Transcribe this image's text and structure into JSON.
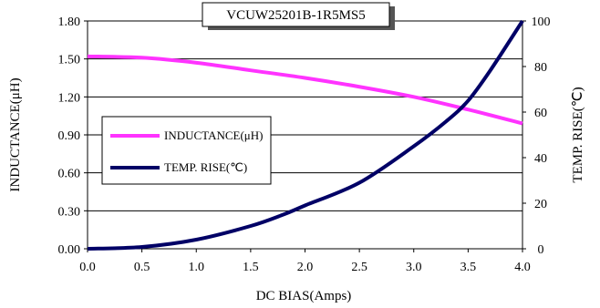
{
  "chart_data": {
    "type": "line",
    "title": "VCUW25201B-1R5MS5",
    "xlabel": "DC BIAS(Amps)",
    "ylabel_left": "INDUCTANCE(μH)",
    "ylabel_right": "TEMP. RISE(℃)",
    "xlim": [
      0,
      4.0
    ],
    "ylim_left": [
      0,
      1.8
    ],
    "ylim_right": [
      0,
      100
    ],
    "x_ticks": [
      "0.0",
      "0.5",
      "1.0",
      "1.5",
      "2.0",
      "2.5",
      "3.0",
      "3.5",
      "4.0"
    ],
    "y_left_ticks": [
      "0.00",
      "0.30",
      "0.60",
      "0.90",
      "1.20",
      "1.50",
      "1.80"
    ],
    "y_right_ticks": [
      "0",
      "20",
      "40",
      "60",
      "80",
      "100"
    ],
    "grid": "horizontal",
    "legend_position": "left-center",
    "series": [
      {
        "name": "INDUCTANCE(μH)",
        "axis": "left",
        "color": "#ff33ff",
        "x": [
          0,
          0.5,
          1.0,
          1.5,
          2.0,
          2.5,
          3.0,
          3.5,
          4.0
        ],
        "values": [
          1.52,
          1.51,
          1.47,
          1.41,
          1.35,
          1.28,
          1.2,
          1.1,
          0.99
        ]
      },
      {
        "name": "TEMP. RISE(℃)",
        "axis": "right",
        "color": "#000066",
        "x": [
          0,
          0.5,
          1.0,
          1.5,
          1.8,
          2.0,
          2.5,
          3.0,
          3.3,
          3.5,
          3.7,
          4.0
        ],
        "values": [
          0,
          0.8,
          4,
          10,
          15,
          19,
          29,
          45,
          56,
          65,
          78,
          100
        ]
      }
    ]
  }
}
